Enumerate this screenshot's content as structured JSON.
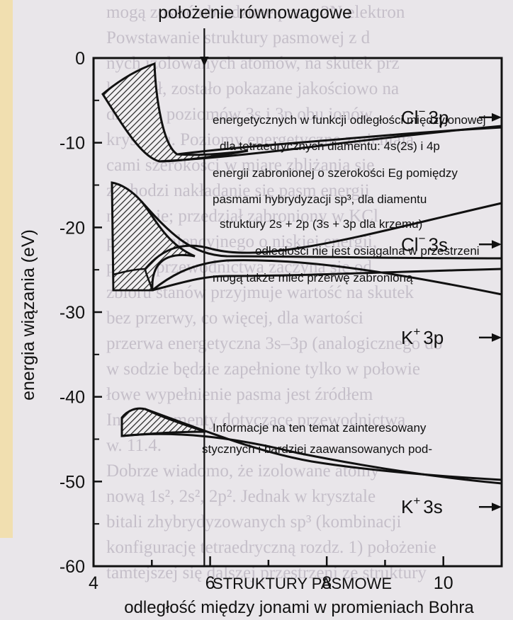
{
  "figure": {
    "top_label": "położenie równowagowe",
    "x_axis_label": "odległość między jonami w promieniach Bohra",
    "y_axis_label": "energia wiązania (eV)",
    "x_ticks": [
      "4",
      "6",
      "8",
      "10"
    ],
    "y_ticks": [
      "0",
      "-10",
      "-20",
      "-30",
      "-40",
      "-50",
      "-60"
    ],
    "x_range": [
      4,
      11
    ],
    "y_range": [
      -60,
      0
    ],
    "equilibrium_x": 5.9,
    "bands": [
      {
        "label_main": "Cl",
        "label_sup": "−",
        "label_orbital": "3p",
        "asymptote_ev": -7
      },
      {
        "label_main": "Cl",
        "label_sup": "−",
        "label_orbital": "3s",
        "asymptote_ev": -22
      },
      {
        "label_main": "K",
        "label_sup": "+",
        "label_orbital": "3p",
        "asymptote_ev": -33
      },
      {
        "label_main": "K",
        "label_sup": "+",
        "label_orbital": "3s",
        "asymptote_ev": -53
      }
    ]
  },
  "background_text": [
    "mogą zostać obsadzone przez 2N elektron",
    "Powstawanie struktury pasmowej z d",
    "nych izolowanych atomów, na skutek prz",
    "kryształ, zostało pokazane jakościowo na",
    "dzono z poziomów 3s i 3p obu jonów",
    "kryształu. Poziomy energetyczne zmieniają",
    "cami szerokości w miarę zbliżania się",
    "zachodzi nakładanie się pasm energii",
    "na siebie; przedział zabroniony w KCl",
    "pasma walencyjnego o niskiej energii,",
    "pasma przewodnictwa zaczyna się od",
    "zbioru stanów przyjmuje wartość na skutek",
    "bez przerwy, co więcej, dla wartości",
    "przerwa energetyczna 3s–3p (analogicznego do",
    "w sodzie będzie zapełnione tylko w połowie",
    "łowe wypełnienie pasma jest źródłem",
    "Inne argumenty dotyczące przewodnictwa",
    "w. 11.4.",
    "Dobrze wiadomo, że izolowane atomy",
    "nową 1s², 2s², 2p². Jednak w krysztale",
    "bitali zhybrydyzowanych sp³ (kombinacji",
    "konfigurację tetraedryczną rozdz. 1) położenie",
    "tamtejszej się dalszej przestrzeni ze struktury"
  ],
  "overlay_text": [
    "energetycznych w funkcji odległości międzyjonowej",
    "dla tetraedrycznych diamentu: 4s(2s) i 4p",
    "energii zabronionej o szerokości Eg pomiędzy",
    "pasmami hybrydyzacji sp³, dla diamentu",
    "struktury 2s + 2p (3s + 3p dla krzemu)",
    "odległości nie jest osiągalna w przestrzeni",
    "mogą także mieć przerwę zabronioną",
    "Informacje na ten temat zainteresowany",
    "stycznych i bardziej zaawansowanych pod-",
    "STRUKTURY PASMOWE"
  ]
}
